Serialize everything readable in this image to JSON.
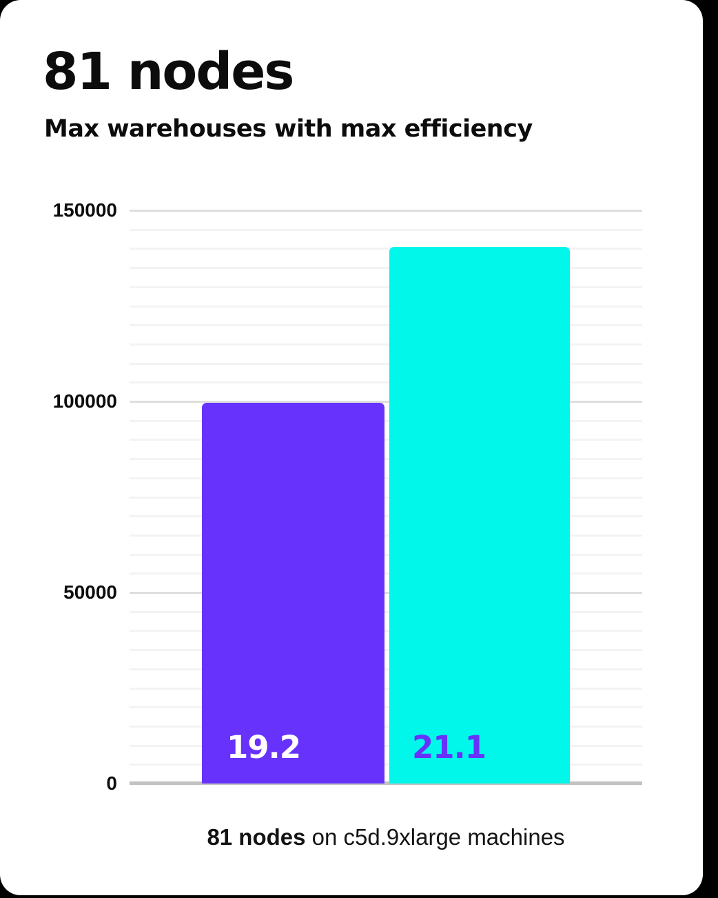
{
  "header": {
    "title": "81 nodes",
    "subtitle": "Max warehouses with max efficiency"
  },
  "chart_data": {
    "type": "bar",
    "title": "81 nodes",
    "subtitle": "Max warehouses with max efficiency",
    "categories": [
      "19.2",
      "21.1"
    ],
    "values": [
      99600,
      140400
    ],
    "bar_labels": [
      "19.2",
      "21.1"
    ],
    "bar_colors": [
      "#6732fc",
      "#00f7ea"
    ],
    "bar_label_colors": [
      "#ffffff",
      "#6732fc"
    ],
    "ylim": [
      0,
      150000
    ],
    "yticks": [
      0,
      50000,
      100000,
      150000
    ],
    "ytick_labels": [
      "0",
      "50000",
      "100000",
      "150000"
    ],
    "minor_grid_step": 5000,
    "major_grid_step": 50000,
    "grid": true,
    "legend": false,
    "xlabel": "",
    "ylabel": "",
    "caption": "81 nodes on c5d.9xlarge machines"
  },
  "caption": {
    "bold": "81 nodes",
    "rest": " on c5d.9xlarge machines"
  },
  "colors": {
    "background": "#000000",
    "card": "#ffffff",
    "axis_line": "#c2c2c2",
    "grid_minor": "#f3f3f3",
    "grid_major": "#dedede",
    "text": "#0c0c0c"
  }
}
